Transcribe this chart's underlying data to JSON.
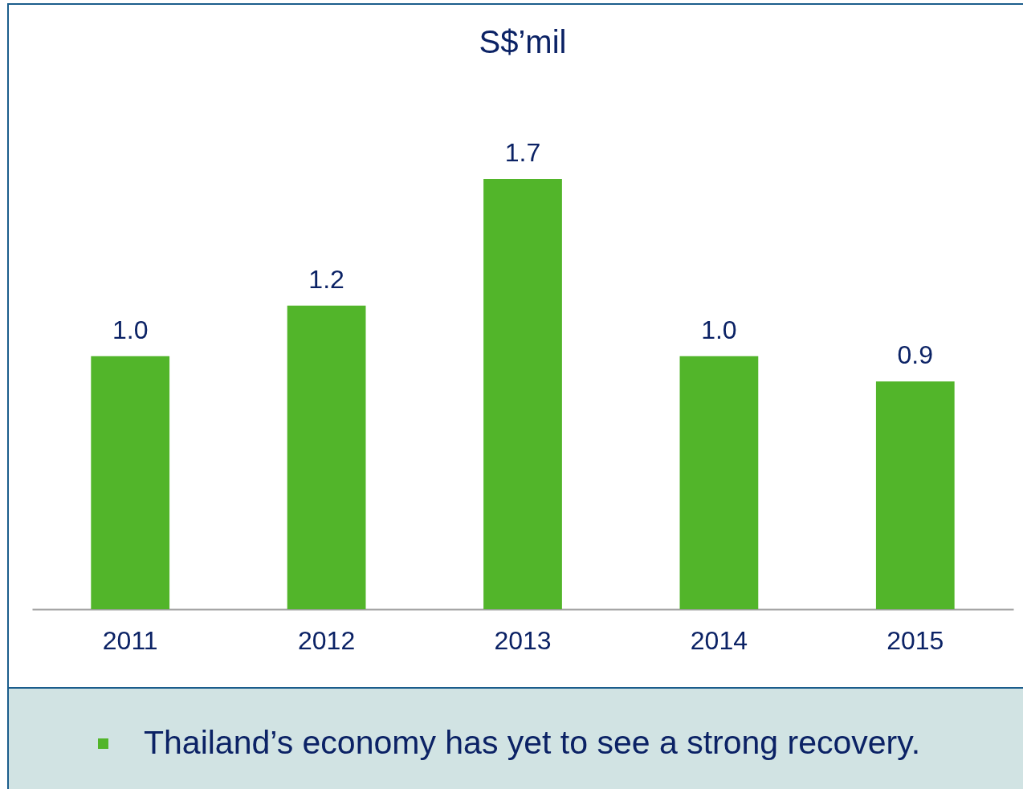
{
  "chart_data": {
    "type": "bar",
    "title": "S$’mil",
    "categories": [
      "2011",
      "2012",
      "2013",
      "2014",
      "2015"
    ],
    "values": [
      1.0,
      1.2,
      1.7,
      1.0,
      0.9
    ],
    "color": "#52b52a",
    "value_labels": [
      "1.0",
      "1.2",
      "1.7",
      "1.0",
      "0.9"
    ],
    "annotations": [
      "Thailand’s economy has yet to see a strong recovery."
    ]
  }
}
